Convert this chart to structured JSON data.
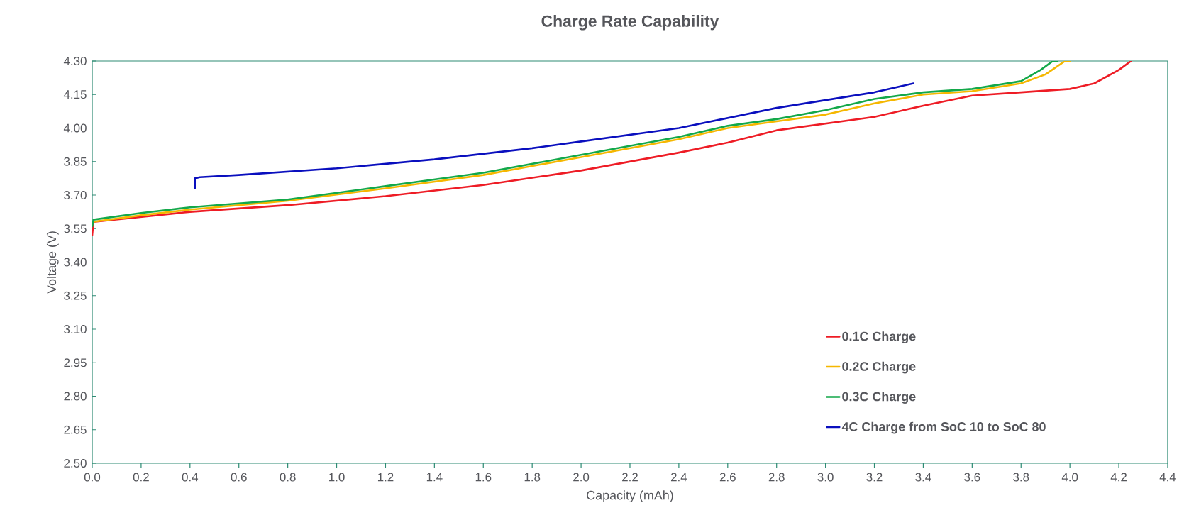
{
  "chart_data": {
    "type": "line",
    "title": "Charge Rate Capability",
    "xlabel": "Capacity (mAh)",
    "ylabel": "Voltage (V)",
    "xlim": [
      0,
      4.4
    ],
    "ylim": [
      2.5,
      4.3
    ],
    "xticks": [
      {
        "value": 0,
        "label": "0.0"
      },
      {
        "value": 0.2,
        "label": "0.2"
      },
      {
        "value": 0.4,
        "label": "0.4"
      },
      {
        "value": 0.6,
        "label": "0.6"
      },
      {
        "value": 0.8,
        "label": "0.8"
      },
      {
        "value": 1.0,
        "label": "1.0"
      },
      {
        "value": 1.2,
        "label": "1.2"
      },
      {
        "value": 1.4,
        "label": "1.4"
      },
      {
        "value": 1.6,
        "label": "1.6"
      },
      {
        "value": 1.8,
        "label": "1.8"
      },
      {
        "value": 2.0,
        "label": "2.0"
      },
      {
        "value": 2.2,
        "label": "2.2"
      },
      {
        "value": 2.4,
        "label": "2.4"
      },
      {
        "value": 2.6,
        "label": "2.6"
      },
      {
        "value": 2.8,
        "label": "2.8"
      },
      {
        "value": 3.0,
        "label": "3.0"
      },
      {
        "value": 3.2,
        "label": "3.2"
      },
      {
        "value": 3.4,
        "label": "3.4"
      },
      {
        "value": 3.6,
        "label": "3.6"
      },
      {
        "value": 3.8,
        "label": "3.8"
      },
      {
        "value": 4.0,
        "label": "4.0"
      },
      {
        "value": 4.2,
        "label": "4.2"
      },
      {
        "value": 4.4,
        "label": "4.4"
      }
    ],
    "yticks": [
      {
        "value": 2.5,
        "label": "2.50"
      },
      {
        "value": 2.65,
        "label": "2.65"
      },
      {
        "value": 2.8,
        "label": "2.80"
      },
      {
        "value": 2.95,
        "label": "2.95"
      },
      {
        "value": 3.1,
        "label": "3.10"
      },
      {
        "value": 3.25,
        "label": "3.25"
      },
      {
        "value": 3.4,
        "label": "3.40"
      },
      {
        "value": 3.55,
        "label": "3.55"
      },
      {
        "value": 3.7,
        "label": "3.70"
      },
      {
        "value": 3.85,
        "label": "3.85"
      },
      {
        "value": 4.0,
        "label": "4.00"
      },
      {
        "value": 4.15,
        "label": "4.15"
      },
      {
        "value": 4.3,
        "label": "4.30"
      }
    ],
    "grid": false,
    "legend": "bottom right",
    "marker": "none",
    "line_style": "solid",
    "series": [
      {
        "name": "0.1C Charge",
        "color": "#ee1c25",
        "x": [
          0,
          0.005,
          0.4,
          0.8,
          1.2,
          1.6,
          2.0,
          2.4,
          2.6,
          2.8,
          3.0,
          3.2,
          3.4,
          3.6,
          3.8,
          4.0,
          4.1,
          4.2,
          4.25
        ],
        "values": [
          3.52,
          3.58,
          3.625,
          3.655,
          3.695,
          3.745,
          3.81,
          3.89,
          3.935,
          3.99,
          4.02,
          4.05,
          4.1,
          4.145,
          4.16,
          4.175,
          4.2,
          4.26,
          4.3
        ]
      },
      {
        "name": "0.2C Charge",
        "color": "#f5b700",
        "x": [
          0,
          0.2,
          0.4,
          0.8,
          1.2,
          1.6,
          2.0,
          2.4,
          2.6,
          2.8,
          3.0,
          3.2,
          3.4,
          3.6,
          3.8,
          3.9,
          3.98,
          4.0
        ],
        "values": [
          3.58,
          3.61,
          3.635,
          3.675,
          3.73,
          3.79,
          3.87,
          3.95,
          4.0,
          4.03,
          4.06,
          4.11,
          4.15,
          4.165,
          4.2,
          4.24,
          4.3,
          4.3
        ]
      },
      {
        "name": "0.3C Charge",
        "color": "#13a84a",
        "x": [
          0,
          0.005,
          0.2,
          0.4,
          0.8,
          1.2,
          1.6,
          2.0,
          2.4,
          2.6,
          2.8,
          3.0,
          3.2,
          3.4,
          3.6,
          3.8,
          3.88,
          3.93,
          3.95
        ],
        "values": [
          3.56,
          3.59,
          3.62,
          3.645,
          3.68,
          3.74,
          3.8,
          3.88,
          3.96,
          4.01,
          4.04,
          4.08,
          4.13,
          4.16,
          4.175,
          4.21,
          4.26,
          4.3,
          4.3
        ]
      },
      {
        "name": "4C Charge from SoC 10 to SoC 80",
        "color": "#0a0fbe",
        "x": [
          0.42,
          0.42,
          0.44,
          0.6,
          1.0,
          1.4,
          1.8,
          2.0,
          2.4,
          2.8,
          3.2,
          3.36
        ],
        "values": [
          3.73,
          3.775,
          3.78,
          3.79,
          3.82,
          3.86,
          3.91,
          3.94,
          4.0,
          4.09,
          4.16,
          4.2
        ]
      }
    ]
  }
}
